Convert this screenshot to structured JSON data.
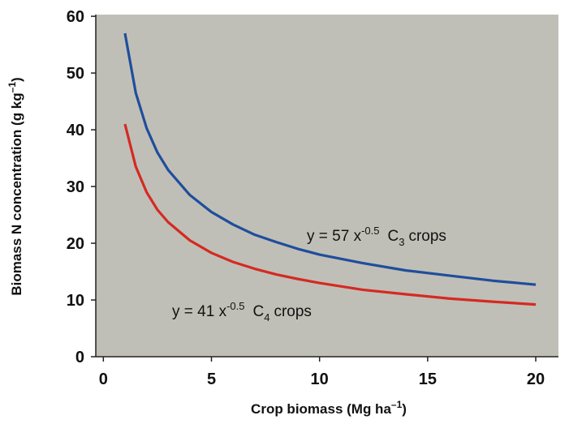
{
  "chart_data": {
    "type": "line",
    "x_label": [
      "Crop biomass (Mg ha",
      "–1",
      ")"
    ],
    "y_label": [
      "Biomass N concentration (g kg",
      "–1",
      ")"
    ],
    "x": [
      1,
      1.5,
      2,
      2.5,
      3,
      4,
      5,
      6,
      7,
      8,
      9,
      10,
      12,
      14,
      16,
      18,
      20
    ],
    "series": [
      {
        "name": "C3 crops",
        "color": "#1f4e9c",
        "values": [
          57,
          46.5,
          40.3,
          36.0,
          32.9,
          28.5,
          25.5,
          23.3,
          21.5,
          20.2,
          19.0,
          18.0,
          16.5,
          15.2,
          14.3,
          13.4,
          12.7
        ]
      },
      {
        "name": "C4 crops",
        "color": "#d42a22",
        "values": [
          41,
          33.5,
          29.0,
          25.9,
          23.7,
          20.5,
          18.3,
          16.7,
          15.5,
          14.5,
          13.7,
          13.0,
          11.8,
          11.0,
          10.25,
          9.7,
          9.2
        ]
      }
    ],
    "annotations": [
      {
        "text": "y = 57 x",
        "exponent": "-0.5",
        "label": "C",
        "subscript": "3",
        "suffix": "crops"
      },
      {
        "text": "y = 41 x",
        "exponent": "-0.5",
        "label": "C",
        "subscript": "4",
        "suffix": "crops"
      }
    ],
    "xlim": [
      -0.35,
      21.05
    ],
    "ylim": [
      0,
      60.3
    ],
    "xticks": [
      0,
      5,
      10,
      15,
      20
    ],
    "yticks": [
      0,
      10,
      20,
      30,
      40,
      50,
      60
    ],
    "background": "#c0bfb7"
  }
}
